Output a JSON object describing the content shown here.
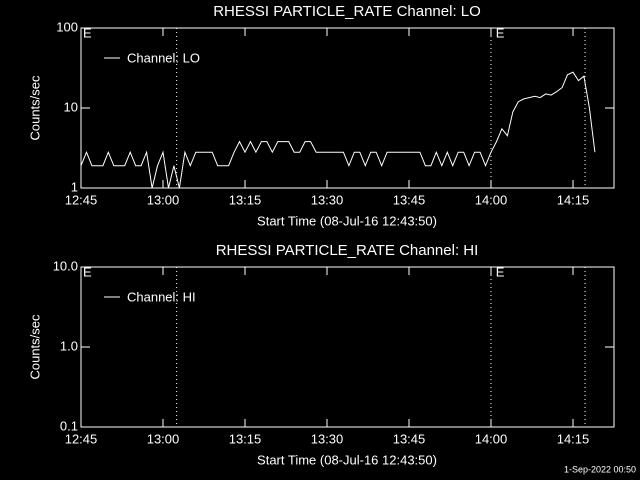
{
  "chart_data": [
    {
      "type": "line",
      "title": "RHESSI PARTICLE_RATE Channel: LO",
      "x_label": "Start Time (08-Jul-16 12:43:50)",
      "y_label": "Counts/sec",
      "log_y": true,
      "ylim": [
        1,
        100
      ],
      "yticks": [
        1,
        10,
        100
      ],
      "xlim": [
        765,
        862.5
      ],
      "xticks": [
        {
          "value": 765,
          "label": "12:45"
        },
        {
          "value": 780,
          "label": "13:00"
        },
        {
          "value": 795,
          "label": "13:15"
        },
        {
          "value": 810,
          "label": "13:30"
        },
        {
          "value": 825,
          "label": "13:45"
        },
        {
          "value": 840,
          "label": "14:00"
        },
        {
          "value": 855,
          "label": "14:15"
        }
      ],
      "markers": [
        782.5,
        840,
        857.2
      ],
      "annotations": [
        {
          "x": 765,
          "text": "E"
        },
        {
          "x": 840.5,
          "text": "E"
        }
      ],
      "series": [
        {
          "name": "Channel: LO",
          "color": "#ffffff",
          "x": [
            765,
            766,
            767,
            768,
            769,
            770,
            771,
            772,
            773,
            774,
            775,
            776,
            777,
            778,
            779,
            780,
            781,
            782,
            783,
            784,
            785,
            786,
            787,
            788,
            789,
            790,
            791,
            792,
            793,
            794,
            795,
            796,
            797,
            798,
            799,
            800,
            801,
            802,
            803,
            804,
            805,
            806,
            807,
            808,
            809,
            810,
            811,
            812,
            813,
            814,
            815,
            816,
            817,
            818,
            819,
            820,
            821,
            822,
            823,
            824,
            825,
            826,
            827,
            828,
            829,
            830,
            831,
            832,
            833,
            834,
            835,
            836,
            837,
            838,
            839,
            840,
            841,
            842,
            843,
            844,
            845,
            846,
            847,
            848,
            849,
            850,
            851,
            852,
            853,
            854,
            855,
            856,
            857,
            858,
            859
          ],
          "values": [
            1.9,
            2.8,
            1.9,
            1.9,
            1.9,
            2.8,
            1.9,
            1.9,
            1.9,
            2.8,
            1.9,
            1.9,
            2.8,
            1,
            1.9,
            2.8,
            1,
            1.9,
            1,
            2.8,
            1.9,
            2.8,
            2.8,
            2.8,
            2.8,
            1.9,
            1.9,
            1.9,
            2.8,
            3.8,
            2.8,
            3.8,
            2.8,
            3.8,
            3.8,
            2.8,
            3.8,
            3.8,
            3.8,
            2.8,
            2.8,
            3.8,
            3.8,
            2.8,
            2.8,
            2.8,
            2.8,
            2.8,
            2.8,
            1.9,
            2.8,
            2.8,
            1.9,
            2.8,
            2.8,
            1.9,
            2.8,
            2.8,
            2.8,
            2.8,
            2.8,
            2.8,
            2.8,
            1.9,
            1.9,
            2.8,
            1.9,
            2.8,
            1.9,
            2.8,
            2.8,
            1.9,
            2.8,
            2.8,
            1.9,
            2.8,
            3.8,
            5.5,
            4.5,
            9,
            12,
            13,
            13.5,
            14,
            13.5,
            15,
            14.5,
            16,
            18,
            26,
            28,
            22,
            25,
            10,
            2.8
          ]
        }
      ]
    },
    {
      "type": "line",
      "title": "RHESSI PARTICLE_RATE Channel: HI",
      "x_label": "Start Time (08-Jul-16 12:43:50)",
      "y_label": "Counts/sec",
      "log_y": true,
      "ylim": [
        0.1,
        10
      ],
      "yticks": [
        0.1,
        {
          "value": 1,
          "label": "1.0"
        },
        {
          "value": 10,
          "label": "10.0"
        }
      ],
      "xlim": [
        765,
        862.5
      ],
      "xticks": [
        {
          "value": 765,
          "label": "12:45"
        },
        {
          "value": 780,
          "label": "13:00"
        },
        {
          "value": 795,
          "label": "13:15"
        },
        {
          "value": 810,
          "label": "13:30"
        },
        {
          "value": 825,
          "label": "13:45"
        },
        {
          "value": 840,
          "label": "14:00"
        },
        {
          "value": 855,
          "label": "14:15"
        }
      ],
      "markers": [
        782.5,
        840,
        857.2
      ],
      "annotations": [
        {
          "x": 765,
          "text": "E"
        },
        {
          "x": 840.5,
          "text": "E"
        }
      ],
      "series": [
        {
          "name": "Channel: HI",
          "color": "#ffffff",
          "x": [],
          "values": []
        }
      ]
    }
  ],
  "footer": "1-Sep-2022 00:50"
}
